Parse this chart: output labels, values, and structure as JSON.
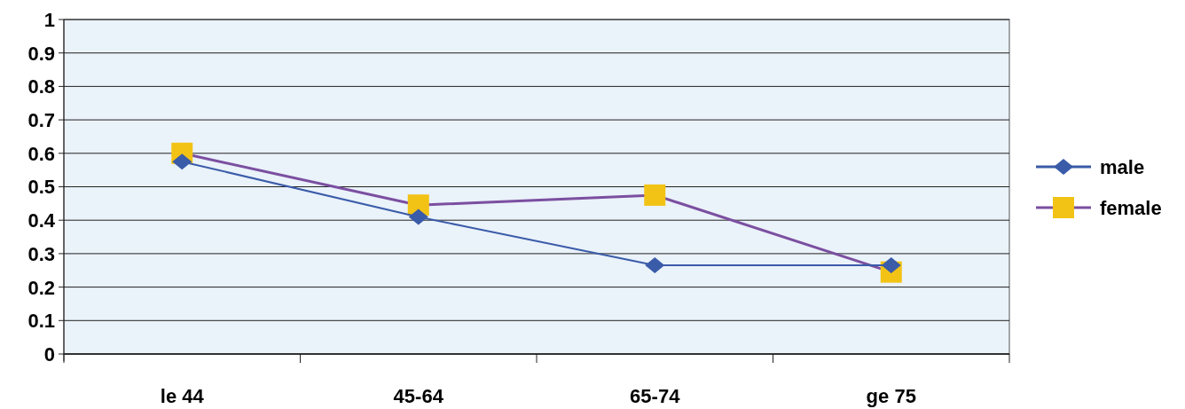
{
  "chart_data": {
    "type": "line",
    "categories": [
      "le 44",
      "45-64",
      "65-74",
      "ge 75"
    ],
    "series": [
      {
        "name": "male",
        "color": "#3a5ba8",
        "marker": "diamond",
        "values": [
          0.575,
          0.41,
          0.265,
          0.265
        ]
      },
      {
        "name": "female",
        "color": "#7b4fa0",
        "marker": "square",
        "colors": [
          "#f2c314",
          "#f2c314",
          "#f2c314",
          "#f2c314"
        ],
        "values": [
          0.6,
          0.445,
          0.475,
          0.245
        ]
      }
    ],
    "ylim": [
      0,
      1
    ],
    "yticks": [
      0,
      0.1,
      0.2,
      0.3,
      0.4,
      0.5,
      0.6,
      0.7,
      0.8,
      0.9,
      1
    ],
    "grid": "y",
    "legend": "right"
  }
}
